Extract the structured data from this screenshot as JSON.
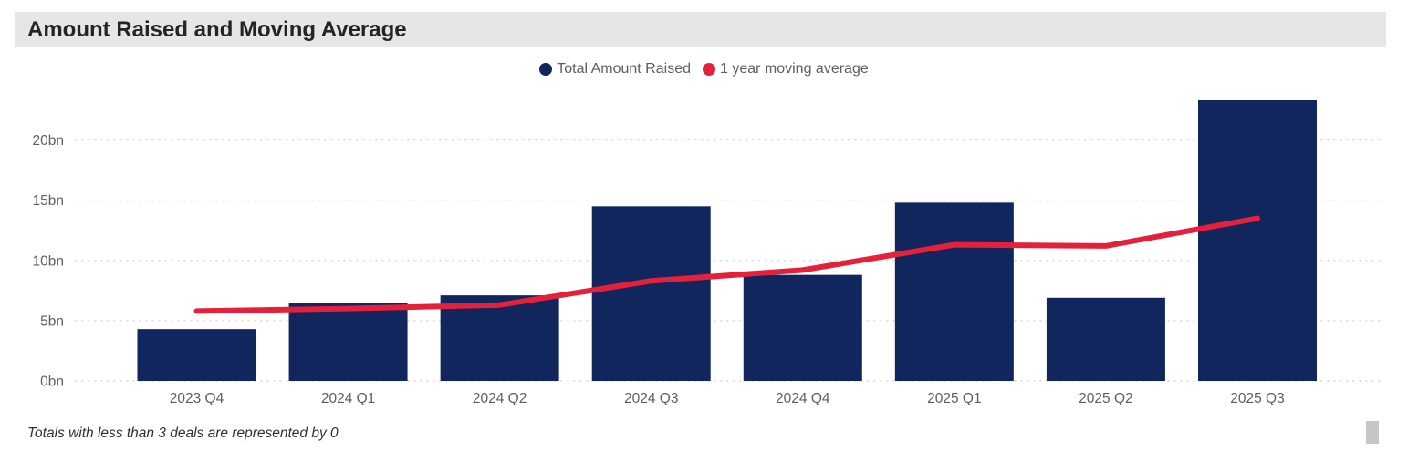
{
  "header": {
    "title": "Amount Raised and Moving Average"
  },
  "legend": {
    "items": [
      {
        "label": "Total Amount Raised",
        "color": "#11265D"
      },
      {
        "label": "1 year moving average",
        "color": "#E5203A"
      }
    ]
  },
  "chart_data": {
    "type": "bar",
    "title": "Amount Raised and Moving Average",
    "categories": [
      "2023 Q4",
      "2024 Q1",
      "2024 Q2",
      "2024 Q3",
      "2024 Q4",
      "2025 Q1",
      "2025 Q2",
      "2025 Q3"
    ],
    "series": [
      {
        "name": "Total Amount Raised",
        "type": "bar",
        "color": "#11265D",
        "values": [
          4.3,
          6.5,
          7.1,
          14.5,
          8.8,
          14.8,
          6.9,
          23.3
        ]
      },
      {
        "name": "1 year moving average",
        "type": "line",
        "color": "#E5203A",
        "values": [
          5.8,
          6.0,
          6.3,
          8.3,
          9.2,
          11.3,
          11.2,
          13.5
        ]
      }
    ],
    "xlabel": "",
    "ylabel": "",
    "unit": "bn",
    "y_ticks": [
      {
        "value": 0,
        "label": "0bn"
      },
      {
        "value": 5,
        "label": "5bn"
      },
      {
        "value": 10,
        "label": "10bn"
      },
      {
        "value": 15,
        "label": "15bn"
      },
      {
        "value": 20,
        "label": "20bn"
      }
    ],
    "ylim": [
      0,
      24
    ],
    "grid": "horizontal-dotted",
    "legend_position": "top-center"
  },
  "footer": {
    "note": "Totals with less than 3 deals are represented by 0"
  },
  "colors": {
    "title_bar_bg": "#E6E6E6",
    "title_text": "#252423",
    "axis_text": "#605E5C",
    "gridline": "#D2D2D2",
    "scrollbar_thumb": "#C6C6C6"
  }
}
